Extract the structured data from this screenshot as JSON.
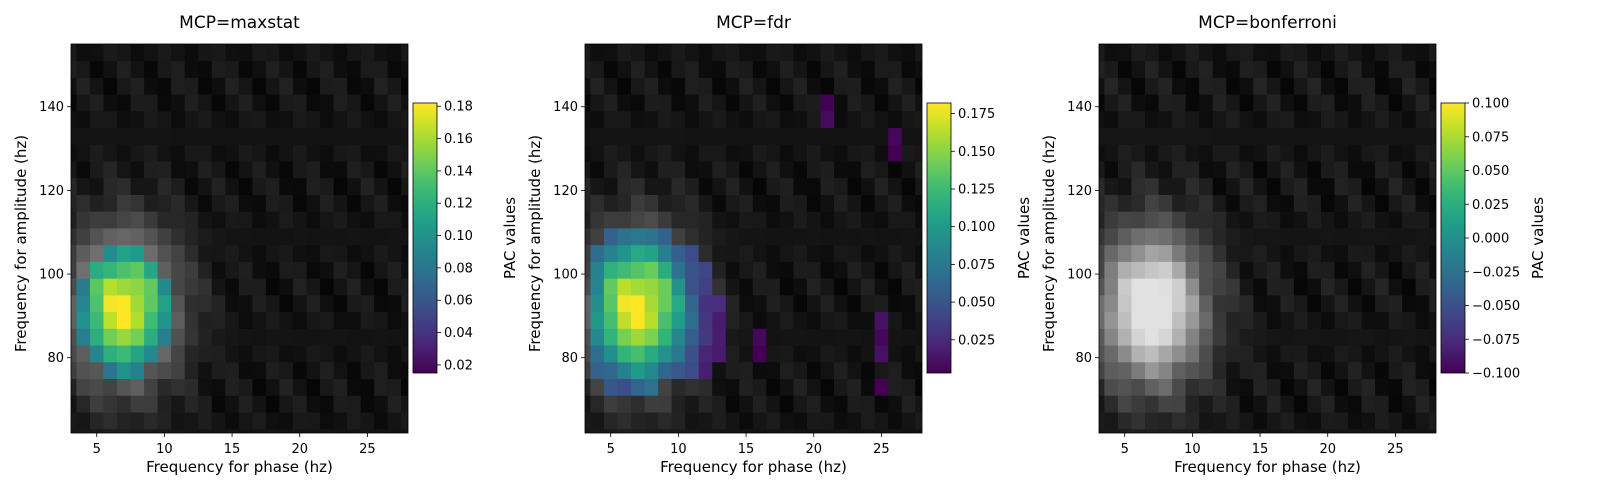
{
  "chart_data": [
    {
      "type": "heatmap",
      "title": "MCP=maxstat",
      "xlabel": "Frequency for phase (hz)",
      "ylabel": "Frequency for amplitude (hz)",
      "colorbar_label": "PAC values",
      "colormap_significant": "viridis",
      "colormap_background": "gray",
      "xlim": [
        3.1,
        28.0
      ],
      "ylim": [
        62.0,
        155.0
      ],
      "xticks": [
        5,
        10,
        15,
        20,
        25
      ],
      "yticks": [
        80,
        100,
        120,
        140
      ],
      "color_range": [
        0.015,
        0.182
      ],
      "colorbar_ticks": [
        "0.02",
        "0.04",
        "0.06",
        "0.08",
        "0.10",
        "0.12",
        "0.14",
        "0.16",
        "0.18"
      ],
      "colorbar_tick_values": [
        0.02,
        0.04,
        0.06,
        0.08,
        0.1,
        0.12,
        0.14,
        0.16,
        0.18
      ],
      "peak": {
        "phase_hz": 7,
        "amp_hz": 92,
        "pac": 0.175
      },
      "significant_cells": [
        [
          6,
          77
        ],
        [
          7,
          77
        ],
        [
          8,
          77
        ],
        [
          5,
          81
        ],
        [
          6,
          81
        ],
        [
          7,
          81
        ],
        [
          8,
          81
        ],
        [
          9,
          81
        ],
        [
          4,
          85
        ],
        [
          5,
          85
        ],
        [
          6,
          85
        ],
        [
          7,
          85
        ],
        [
          8,
          85
        ],
        [
          9,
          85
        ],
        [
          10,
          85
        ],
        [
          4,
          89
        ],
        [
          5,
          89
        ],
        [
          6,
          89
        ],
        [
          7,
          89
        ],
        [
          8,
          89
        ],
        [
          9,
          89
        ],
        [
          10,
          89
        ],
        [
          4,
          93
        ],
        [
          5,
          93
        ],
        [
          6,
          93
        ],
        [
          7,
          93
        ],
        [
          8,
          93
        ],
        [
          9,
          93
        ],
        [
          10,
          93
        ],
        [
          4,
          97
        ],
        [
          5,
          97
        ],
        [
          6,
          97
        ],
        [
          7,
          97
        ],
        [
          8,
          97
        ],
        [
          9,
          97
        ],
        [
          10,
          97
        ],
        [
          5,
          101
        ],
        [
          6,
          101
        ],
        [
          7,
          101
        ],
        [
          8,
          101
        ],
        [
          9,
          101
        ],
        [
          6,
          105
        ],
        [
          7,
          105
        ],
        [
          8,
          105
        ]
      ]
    },
    {
      "type": "heatmap",
      "title": "MCP=fdr",
      "xlabel": "Frequency for phase (hz)",
      "ylabel": "Frequency for amplitude (hz)",
      "colorbar_label": "PAC values",
      "colormap_significant": "viridis",
      "colormap_background": "gray",
      "xlim": [
        3.1,
        28.0
      ],
      "ylim": [
        62.0,
        155.0
      ],
      "xticks": [
        5,
        10,
        15,
        20,
        25
      ],
      "yticks": [
        80,
        100,
        120,
        140
      ],
      "color_range": [
        0.003,
        0.182
      ],
      "colorbar_ticks": [
        "0.025",
        "0.050",
        "0.075",
        "0.100",
        "0.125",
        "0.150",
        "0.175"
      ],
      "colorbar_tick_values": [
        0.025,
        0.05,
        0.075,
        0.1,
        0.125,
        0.15,
        0.175
      ],
      "peak": {
        "phase_hz": 7,
        "amp_hz": 92,
        "pac": 0.175
      },
      "significant_cells": [
        [
          5,
          73
        ],
        [
          6,
          73
        ],
        [
          7,
          73
        ],
        [
          8,
          73
        ],
        [
          4,
          77
        ],
        [
          5,
          77
        ],
        [
          6,
          77
        ],
        [
          7,
          77
        ],
        [
          8,
          77
        ],
        [
          9,
          77
        ],
        [
          10,
          77
        ],
        [
          11,
          77
        ],
        [
          12,
          77
        ],
        [
          4,
          81
        ],
        [
          5,
          81
        ],
        [
          6,
          81
        ],
        [
          7,
          81
        ],
        [
          8,
          81
        ],
        [
          9,
          81
        ],
        [
          10,
          81
        ],
        [
          11,
          81
        ],
        [
          12,
          81
        ],
        [
          13,
          81
        ],
        [
          4,
          85
        ],
        [
          5,
          85
        ],
        [
          6,
          85
        ],
        [
          7,
          85
        ],
        [
          8,
          85
        ],
        [
          9,
          85
        ],
        [
          10,
          85
        ],
        [
          11,
          85
        ],
        [
          12,
          85
        ],
        [
          13,
          85
        ],
        [
          4,
          89
        ],
        [
          5,
          89
        ],
        [
          6,
          89
        ],
        [
          7,
          89
        ],
        [
          8,
          89
        ],
        [
          9,
          89
        ],
        [
          10,
          89
        ],
        [
          11,
          89
        ],
        [
          12,
          89
        ],
        [
          13,
          89
        ],
        [
          4,
          93
        ],
        [
          5,
          93
        ],
        [
          6,
          93
        ],
        [
          7,
          93
        ],
        [
          8,
          93
        ],
        [
          9,
          93
        ],
        [
          10,
          93
        ],
        [
          11,
          93
        ],
        [
          12,
          93
        ],
        [
          13,
          93
        ],
        [
          4,
          97
        ],
        [
          5,
          97
        ],
        [
          6,
          97
        ],
        [
          7,
          97
        ],
        [
          8,
          97
        ],
        [
          9,
          97
        ],
        [
          10,
          97
        ],
        [
          11,
          97
        ],
        [
          12,
          97
        ],
        [
          4,
          101
        ],
        [
          5,
          101
        ],
        [
          6,
          101
        ],
        [
          7,
          101
        ],
        [
          8,
          101
        ],
        [
          9,
          101
        ],
        [
          10,
          101
        ],
        [
          11,
          101
        ],
        [
          12,
          101
        ],
        [
          4,
          105
        ],
        [
          5,
          105
        ],
        [
          6,
          105
        ],
        [
          7,
          105
        ],
        [
          8,
          105
        ],
        [
          9,
          105
        ],
        [
          10,
          105
        ],
        [
          11,
          105
        ],
        [
          5,
          109
        ],
        [
          6,
          109
        ],
        [
          7,
          109
        ],
        [
          8,
          109
        ],
        [
          9,
          109
        ],
        [
          16,
          81
        ],
        [
          16,
          85
        ],
        [
          25,
          81
        ],
        [
          25,
          85
        ],
        [
          25,
          89
        ],
        [
          25,
          73
        ],
        [
          21,
          141
        ],
        [
          21,
          137
        ],
        [
          26,
          133
        ],
        [
          26,
          129
        ]
      ]
    },
    {
      "type": "heatmap",
      "title": "MCP=bonferroni",
      "xlabel": "Frequency for phase (hz)",
      "ylabel": "Frequency for amplitude (hz)",
      "colorbar_label": "PAC values",
      "colormap_significant": "viridis",
      "colormap_background": "gray",
      "xlim": [
        3.1,
        28.0
      ],
      "ylim": [
        62.0,
        155.0
      ],
      "xticks": [
        5,
        10,
        15,
        20,
        25
      ],
      "yticks": [
        80,
        100,
        120,
        140
      ],
      "color_range": [
        -0.1,
        0.1
      ],
      "colorbar_ticks": [
        "−0.100",
        "−0.075",
        "−0.050",
        "−0.025",
        "0.000",
        "0.025",
        "0.050",
        "0.075",
        "0.100"
      ],
      "colorbar_tick_values": [
        -0.1,
        -0.075,
        -0.05,
        -0.025,
        0.0,
        0.025,
        0.05,
        0.075,
        0.1
      ],
      "peak": {
        "phase_hz": 7,
        "amp_hz": 92,
        "pac": 0.175
      },
      "significant_cells": []
    }
  ]
}
